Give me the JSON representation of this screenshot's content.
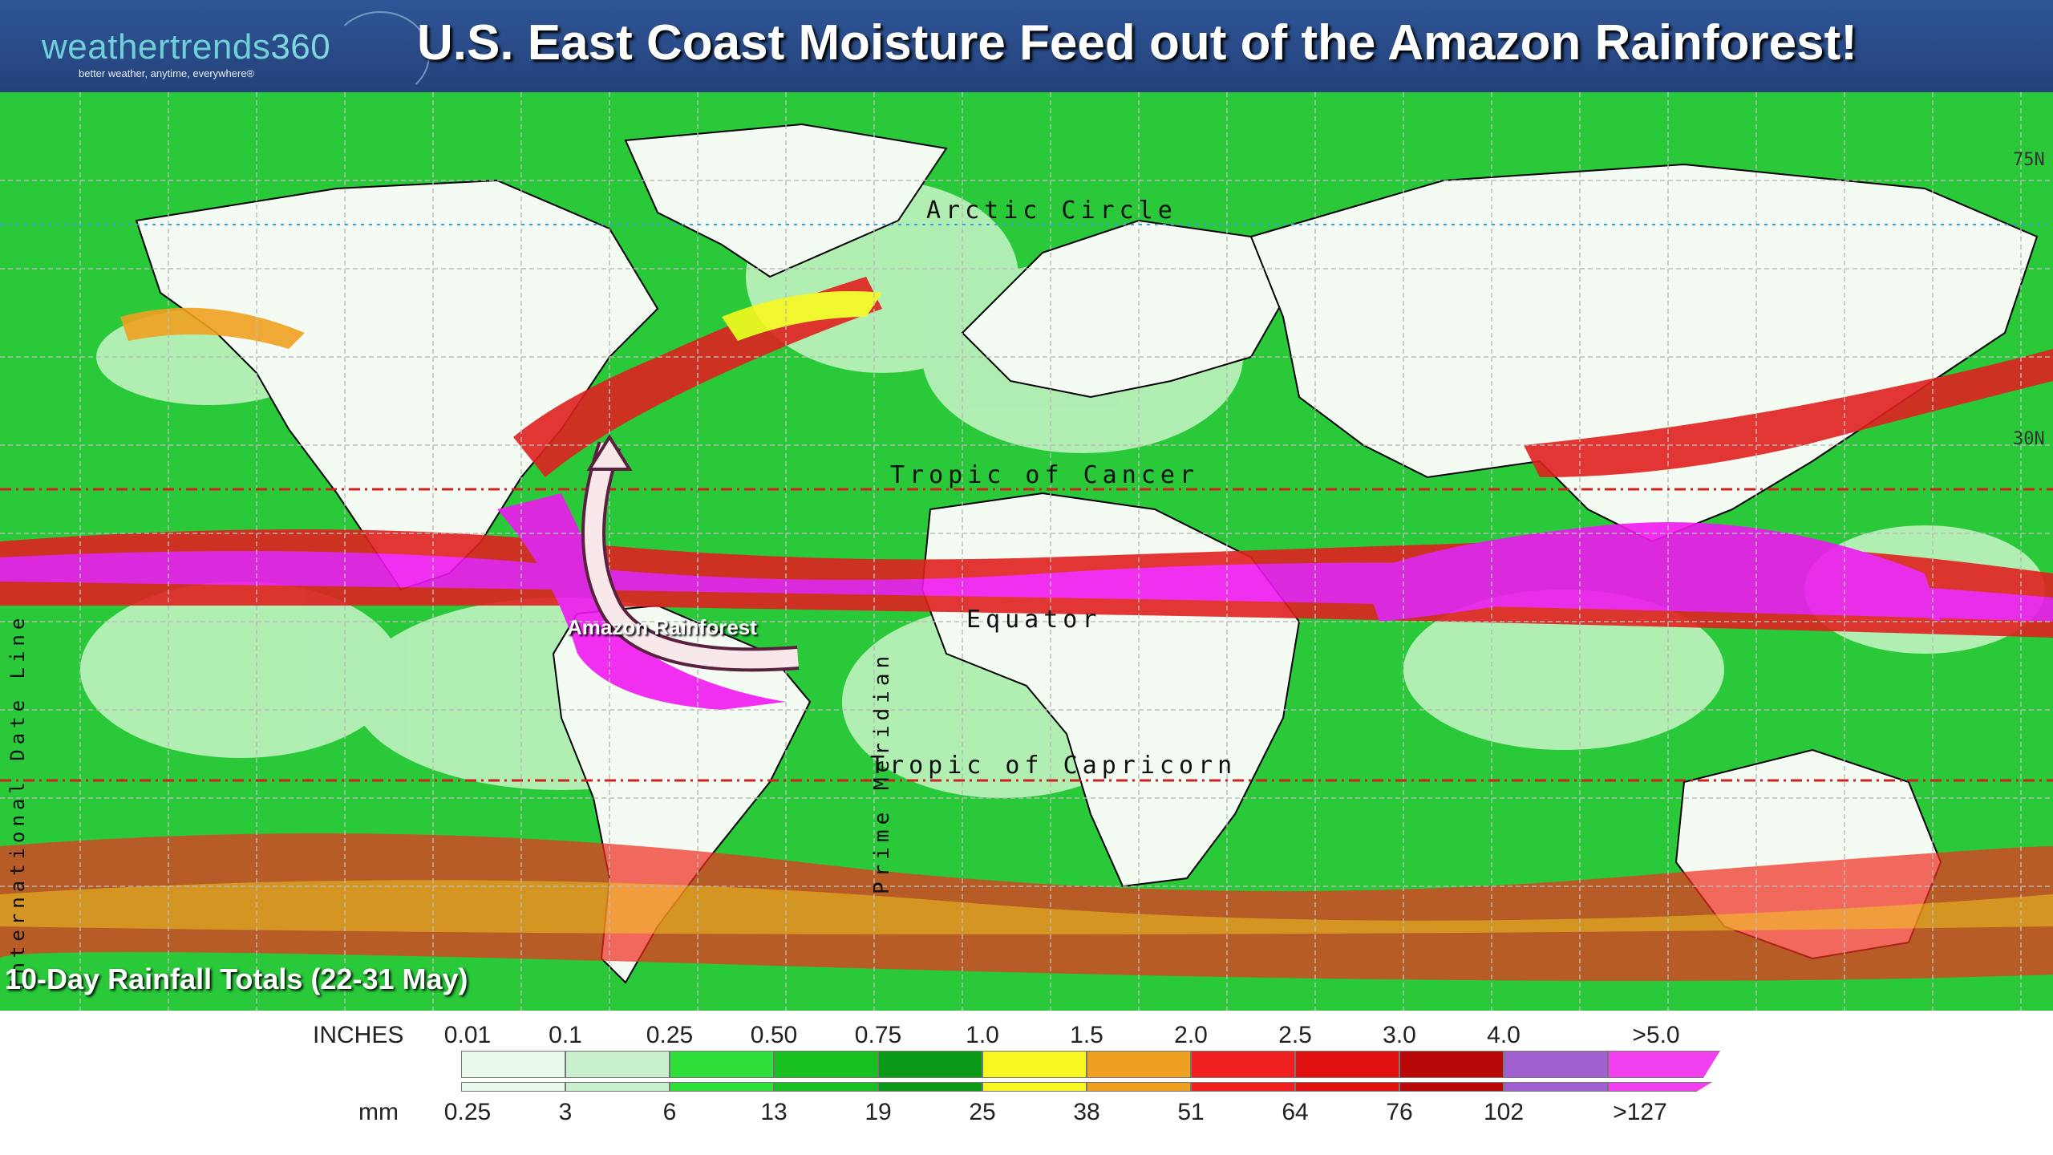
{
  "header": {
    "title": "U.S. East Coast Moisture Feed out of the Amazon Rainforest!",
    "logo": {
      "text_main": "weathertrends",
      "text_num": "360",
      "tagline": "better weather, anytime, everywhere®"
    }
  },
  "map": {
    "labels": {
      "arctic_circle": "Arctic Circle",
      "tropic_cancer": "Tropic of Cancer",
      "equator": "Equator",
      "tropic_capricorn": "Tropic of Capricorn",
      "prime_meridian": "Prime Meridian",
      "date_line": "International Date Line"
    },
    "coords": {
      "lat75": "75N",
      "lat30": "30N"
    },
    "annotation": "Amazon Rainforest",
    "subtitle": "10-Day Rainfall Totals (22-31 May)"
  },
  "legend": {
    "inches_label": "INCHES",
    "mm_label": "mm",
    "inches": [
      "0.01",
      "0.1",
      "0.25",
      "0.50",
      "0.75",
      "1.0",
      "1.5",
      "2.0",
      "2.5",
      "3.0",
      "4.0",
      ">5.0"
    ],
    "mm": [
      "0.25",
      "3",
      "6",
      "13",
      "19",
      "25",
      "38",
      "51",
      "64",
      "76",
      "102",
      ">127"
    ],
    "colors": [
      "#e8f8ea",
      "#c8f0cc",
      "#2fe03a",
      "#18c020",
      "#0a9a18",
      "#f8f820",
      "#f0a020",
      "#f02020",
      "#e01010",
      "#b80808",
      "#a060d0",
      "#f040f0"
    ]
  },
  "colors": {
    "header_bg": "#2f5597",
    "ocean_green": "#29c93a",
    "heavy_rain": "#f018f0"
  }
}
